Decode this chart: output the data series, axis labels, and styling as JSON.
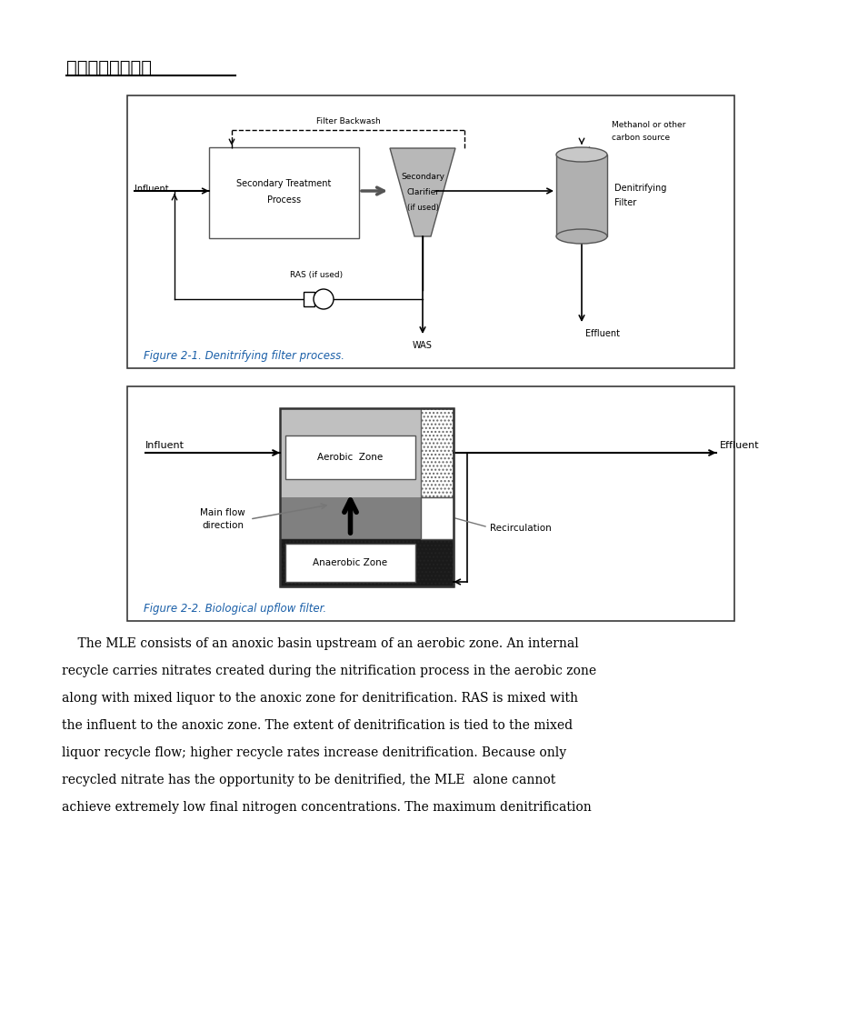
{
  "title": "各种工艺流程框图",
  "blue_caption": "#1a5fa8",
  "fig1_caption": "Figure 2-1. Denitrifying filter process.",
  "fig2_caption": "Figure 2-2. Biological upflow filter.",
  "paragraph_lines": [
    "    The MLE consists of an anoxic basin upstream of an aerobic zone. An internal",
    "recycle carries nitrates created during the nitrification process in the aerobic zone",
    "along with mixed liquor to the anoxic zone for denitrification. RAS is mixed with",
    "the influent to the anoxic zone. The extent of denitrification is tied to the mixed",
    "liquor recycle flow; higher recycle rates increase denitrification. Because only",
    "recycled nitrate has the opportunity to be denitrified, the MLE  alone cannot",
    "achieve extremely low final nitrogen concentrations. The maximum denitrification"
  ],
  "page_bg": "#ececec",
  "white": "#ffffff"
}
